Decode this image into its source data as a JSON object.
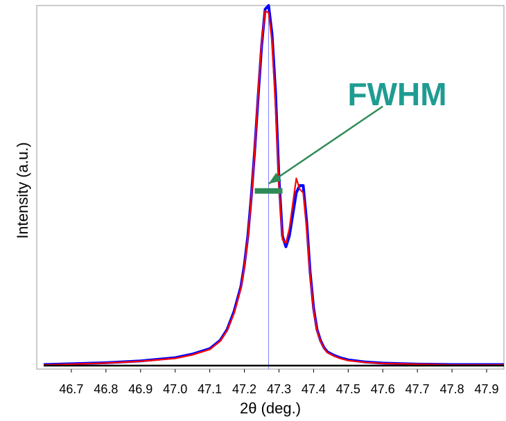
{
  "chart_data": {
    "type": "line",
    "title": "",
    "xlabel": "2θ (deg.)",
    "ylabel": "Intensity (a.u.)",
    "xlim": [
      46.6,
      47.95
    ],
    "ylim": [
      0,
      1.0
    ],
    "x_ticks": [
      "46.7",
      "46.8",
      "46.9",
      "47.0",
      "47.1",
      "47.2",
      "47.3",
      "47.4",
      "47.5",
      "47.6",
      "47.7",
      "47.8",
      "47.9"
    ],
    "y_ticks_visible": false,
    "grid": false,
    "legend": "none",
    "peak_marker_x": 47.27,
    "annotation": {
      "text": "FWHM",
      "color": "#1f9c92",
      "arrow_color": "#2e8b57",
      "fwhm_segment": {
        "x_start": 47.23,
        "x_end": 47.31,
        "y": 0.485
      },
      "arrow_tip": {
        "x": 47.27,
        "y": 0.505
      },
      "arrow_tail": {
        "x": 47.6,
        "y": 0.72
      }
    },
    "series": [
      {
        "color": "#0000ff",
        "x": [
          46.62,
          46.7,
          46.8,
          46.9,
          47.0,
          47.05,
          47.1,
          47.13,
          47.15,
          47.17,
          47.19,
          47.2,
          47.21,
          47.22,
          47.23,
          47.24,
          47.25,
          47.26,
          47.27,
          47.28,
          47.29,
          47.3,
          47.31,
          47.32,
          47.33,
          47.34,
          47.35,
          47.36,
          47.37,
          47.38,
          47.39,
          47.4,
          47.41,
          47.42,
          47.43,
          47.44,
          47.46,
          47.48,
          47.5,
          47.55,
          47.6,
          47.7,
          47.8,
          47.9,
          47.95
        ],
        "y": [
          0.003,
          0.005,
          0.008,
          0.013,
          0.022,
          0.032,
          0.047,
          0.07,
          0.1,
          0.15,
          0.22,
          0.28,
          0.36,
          0.47,
          0.6,
          0.75,
          0.89,
          0.99,
          1.0,
          0.92,
          0.76,
          0.52,
          0.36,
          0.33,
          0.36,
          0.42,
          0.48,
          0.5,
          0.5,
          0.4,
          0.26,
          0.16,
          0.1,
          0.07,
          0.05,
          0.038,
          0.028,
          0.021,
          0.016,
          0.01,
          0.007,
          0.004,
          0.003,
          0.003,
          0.003
        ]
      },
      {
        "color": "#ff0000",
        "x": [
          46.62,
          46.7,
          46.8,
          46.9,
          47.0,
          47.05,
          47.1,
          47.13,
          47.15,
          47.17,
          47.19,
          47.2,
          47.21,
          47.22,
          47.23,
          47.24,
          47.25,
          47.26,
          47.27,
          47.28,
          47.29,
          47.3,
          47.31,
          47.32,
          47.33,
          47.34,
          47.35,
          47.36,
          47.37,
          47.38,
          47.39,
          47.4,
          47.41,
          47.42,
          47.43,
          47.44,
          47.46,
          47.48,
          47.5,
          47.55,
          47.6,
          47.7,
          47.8,
          47.9,
          47.95
        ],
        "y": [
          0.002,
          0.004,
          0.007,
          0.012,
          0.02,
          0.03,
          0.045,
          0.068,
          0.098,
          0.145,
          0.215,
          0.275,
          0.355,
          0.465,
          0.6,
          0.76,
          0.9,
          0.985,
          0.98,
          0.9,
          0.72,
          0.5,
          0.35,
          0.34,
          0.38,
          0.45,
          0.52,
          0.49,
          0.48,
          0.38,
          0.25,
          0.155,
          0.097,
          0.068,
          0.048,
          0.036,
          0.026,
          0.019,
          0.014,
          0.009,
          0.006,
          0.004,
          0.002,
          0.002,
          0.002
        ]
      },
      {
        "color": "#000000",
        "x": [
          46.62,
          47.95
        ],
        "y": [
          0.0,
          0.0
        ]
      }
    ]
  }
}
